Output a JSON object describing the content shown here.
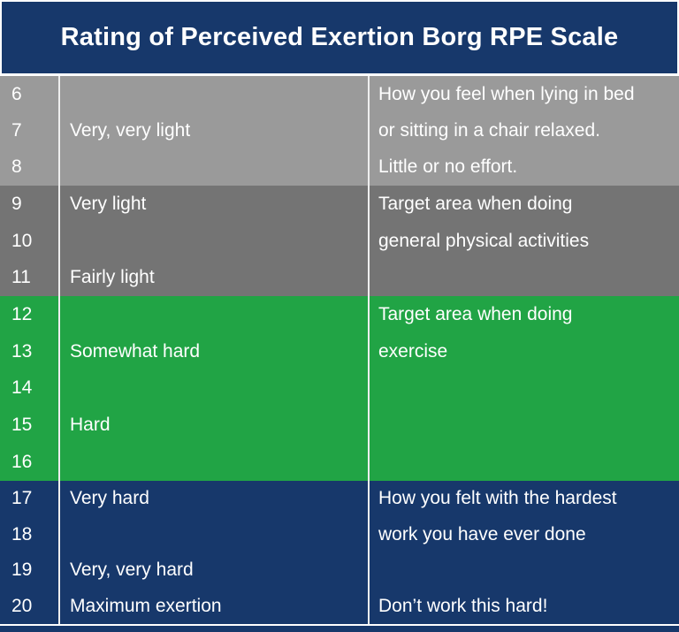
{
  "title": "Rating of Perceived Exertion Borg RPE Scale",
  "palette": {
    "navy": "#17386b",
    "light_gray": "#9a9a9a",
    "dark_gray": "#747474",
    "green": "#21a445",
    "line": "#eeeeee",
    "text": "#ffffff"
  },
  "sections": [
    {
      "bg": "#9a9a9a",
      "rows": [
        {
          "value": "6",
          "label": "",
          "note": "How you feel when lying in bed"
        },
        {
          "value": "7",
          "label": "Very, very light",
          "note": "or sitting in a chair relaxed."
        },
        {
          "value": "8",
          "label": "",
          "note": "Little or no effort."
        }
      ]
    },
    {
      "bg": "#747474",
      "rows": [
        {
          "value": "9",
          "label": "Very light",
          "note": "Target area when doing"
        },
        {
          "value": "10",
          "label": "",
          "note": "general physical activities"
        },
        {
          "value": "11",
          "label": "Fairly light",
          "note": ""
        }
      ]
    },
    {
      "bg": "#21a445",
      "rows": [
        {
          "value": "12",
          "label": "",
          "note": "Target area when doing"
        },
        {
          "value": "13",
          "label": "Somewhat hard",
          "note": "exercise"
        },
        {
          "value": "14",
          "label": "",
          "note": ""
        },
        {
          "value": "15",
          "label": "Hard",
          "note": ""
        },
        {
          "value": "16",
          "label": "",
          "note": ""
        }
      ]
    },
    {
      "bg": "#17386b",
      "rows": [
        {
          "value": "17",
          "label": "Very hard",
          "note": "How you felt with the hardest"
        },
        {
          "value": "18",
          "label": "",
          "note": "work you have ever done"
        },
        {
          "value": "19",
          "label": "Very, very hard",
          "note": ""
        },
        {
          "value": "20",
          "label": "Maximum exertion",
          "note": "Don’t work this hard!"
        }
      ]
    }
  ],
  "chart_data": {
    "type": "table",
    "title": "Rating of Perceived Exertion Borg RPE Scale",
    "bands": [
      {
        "scores": [
          6,
          7,
          8
        ],
        "labels": [
          "Very, very light"
        ],
        "description": "How you feel when lying in bed or sitting in a chair relaxed. Little or no effort.",
        "color": "#9a9a9a"
      },
      {
        "scores": [
          9,
          10,
          11
        ],
        "labels": [
          "Very light",
          "Fairly light"
        ],
        "description": "Target area when doing general physical activities",
        "color": "#747474"
      },
      {
        "scores": [
          12,
          13,
          14,
          15,
          16
        ],
        "labels": [
          "Somewhat hard",
          "Hard"
        ],
        "description": "Target area when doing exercise",
        "color": "#21a445"
      },
      {
        "scores": [
          17,
          18,
          19,
          20
        ],
        "labels": [
          "Very hard",
          "Very, very hard",
          "Maximum exertion"
        ],
        "description": "How you felt with the hardest work you have ever done — Don’t work this hard!",
        "color": "#17386b"
      }
    ],
    "scale_range": [
      6,
      20
    ]
  }
}
